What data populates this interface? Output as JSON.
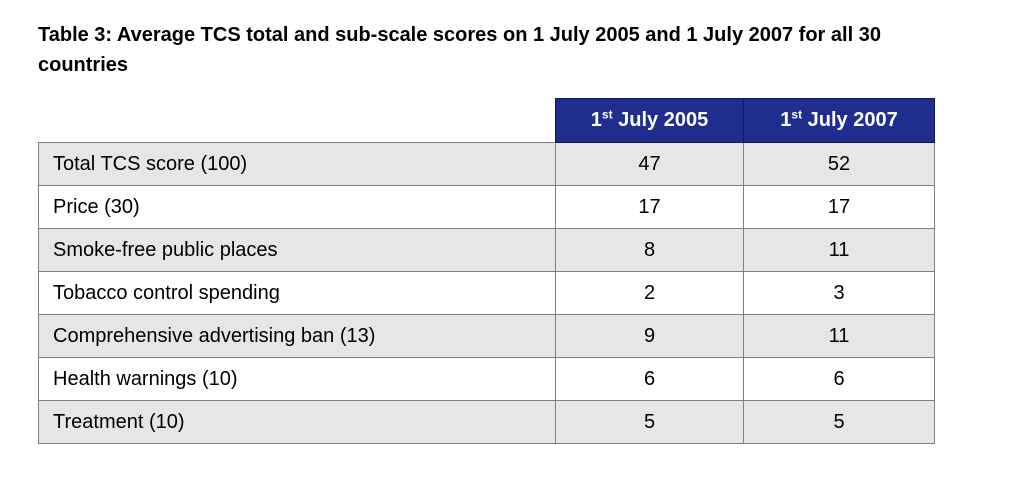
{
  "caption": {
    "line1": "Table 3: Average TCS total and sub-scale scores on 1 July 2005 and 1 July 2007 for all 30",
    "line2": "countries"
  },
  "table": {
    "header": {
      "col2005": {
        "base": "1",
        "sup": "st",
        "rest": " July 2005"
      },
      "col2007": {
        "base": "1",
        "sup": "st",
        "rest": " July 2007"
      }
    },
    "rows": [
      {
        "label": "Total TCS score (100)",
        "v2005": "47",
        "v2007": "52"
      },
      {
        "label": "Price (30)",
        "v2005": "17",
        "v2007": "17"
      },
      {
        "label": "Smoke-free public places",
        "v2005": "8",
        "v2007": "11"
      },
      {
        "label": "Tobacco control spending",
        "v2005": "2",
        "v2007": "3"
      },
      {
        "label": "Comprehensive advertising ban (13)",
        "v2005": "9",
        "v2007": "11"
      },
      {
        "label": "Health warnings (10)",
        "v2005": "6",
        "v2007": "6"
      },
      {
        "label": "Treatment (10)",
        "v2005": "5",
        "v2007": "5"
      }
    ],
    "colors": {
      "header_bg": "#1e2d8e",
      "header_text": "#ffffff",
      "alt_row_bg": "#e6e6e6",
      "row_bg": "#ffffff",
      "border": "#7f7f7f",
      "text": "#000000"
    }
  },
  "chart_data": {
    "type": "table",
    "title": "Table 3: Average TCS total and sub-scale scores on 1 July 2005 and 1 July 2007 for all 30 countries",
    "categories": [
      "Total TCS score (100)",
      "Price (30)",
      "Smoke-free public places",
      "Tobacco control spending",
      "Comprehensive advertising ban (13)",
      "Health warnings (10)",
      "Treatment (10)"
    ],
    "series": [
      {
        "name": "1st July 2005",
        "values": [
          47,
          17,
          8,
          2,
          9,
          6,
          5
        ]
      },
      {
        "name": "1st July 2007",
        "values": [
          52,
          17,
          11,
          3,
          11,
          6,
          5
        ]
      }
    ]
  }
}
